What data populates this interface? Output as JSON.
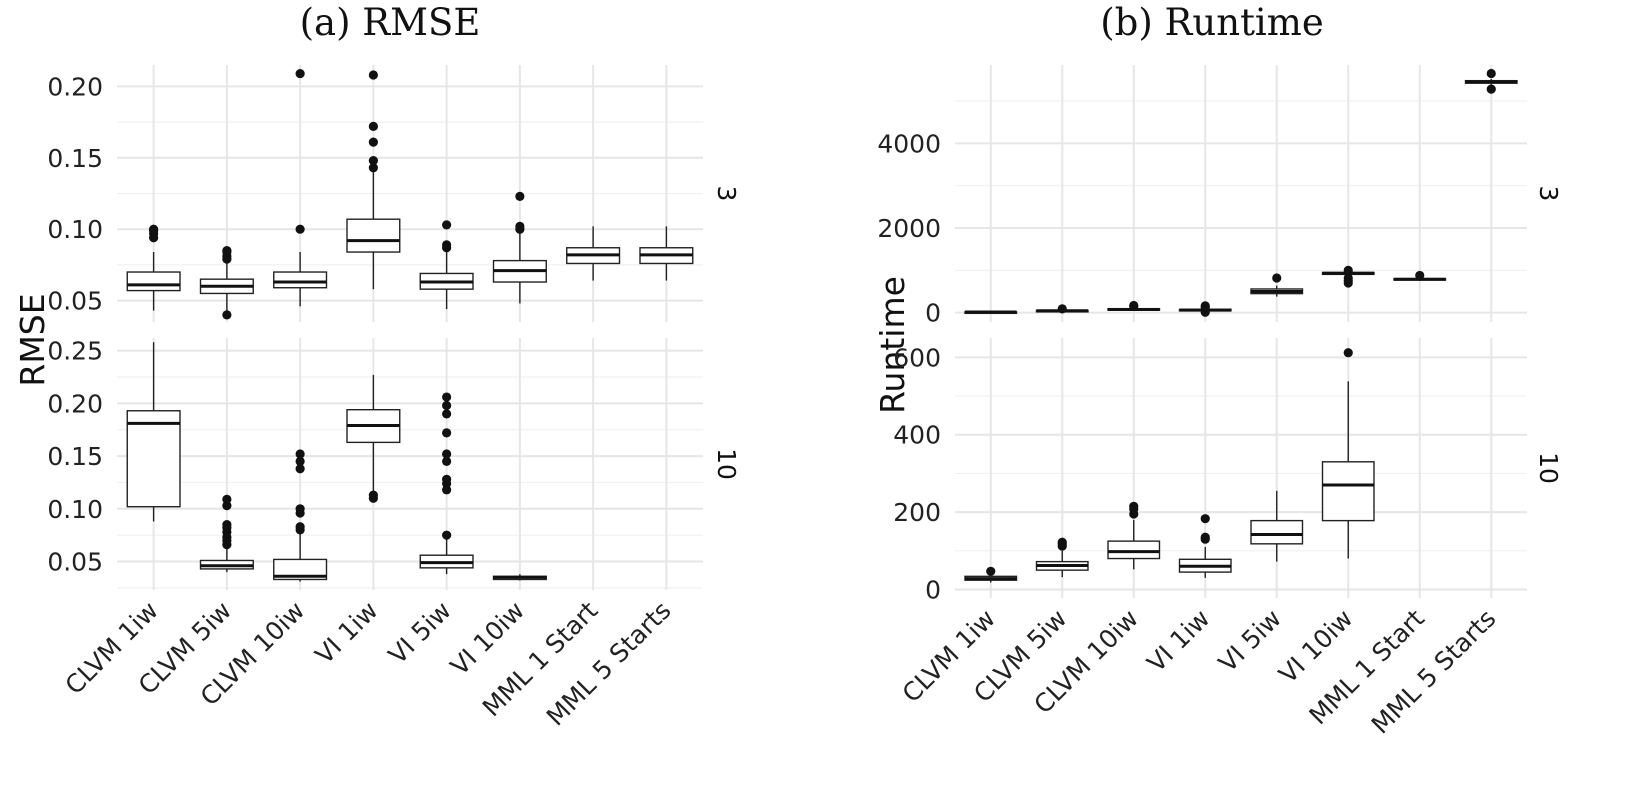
{
  "chart_data": [
    {
      "type": "boxplot",
      "title": "(a) RMSE",
      "ylabel": "RMSE",
      "xlabel": "",
      "categories": [
        "CLVM 1iw",
        "CLVM 5iw",
        "CLVM 10iw",
        "VI 1iw",
        "VI 5iw",
        "VI 10iw",
        "MML 1 Start",
        "MML 5 Starts"
      ],
      "grid": true,
      "facets": [
        {
          "strip": "3",
          "ylim": [
            0.035,
            0.215
          ],
          "yticks": [
            0.05,
            0.1,
            0.15,
            0.2
          ],
          "ytick_labels": [
            "0.05",
            "0.10",
            "0.15",
            "0.20"
          ],
          "boxes": [
            {
              "min": 0.043,
              "q1": 0.057,
              "median": 0.061,
              "q3": 0.07,
              "max": 0.084,
              "outliers": [
                0.094,
                0.097,
                0.099,
                0.1
              ]
            },
            {
              "min": 0.04,
              "q1": 0.055,
              "median": 0.06,
              "q3": 0.065,
              "max": 0.076,
              "outliers": [
                0.04,
                0.079,
                0.081,
                0.084,
                0.085
              ]
            },
            {
              "min": 0.046,
              "q1": 0.059,
              "median": 0.063,
              "q3": 0.07,
              "max": 0.084,
              "outliers": [
                0.1,
                0.209
              ]
            },
            {
              "min": 0.058,
              "q1": 0.084,
              "median": 0.092,
              "q3": 0.107,
              "max": 0.14,
              "outliers": [
                0.143,
                0.148,
                0.161,
                0.172,
                0.208
              ]
            },
            {
              "min": 0.044,
              "q1": 0.058,
              "median": 0.063,
              "q3": 0.069,
              "max": 0.086,
              "outliers": [
                0.087,
                0.089,
                0.103
              ]
            },
            {
              "min": 0.048,
              "q1": 0.063,
              "median": 0.071,
              "q3": 0.078,
              "max": 0.099,
              "outliers": [
                0.1,
                0.102,
                0.123
              ]
            },
            {
              "min": 0.064,
              "q1": 0.076,
              "median": 0.082,
              "q3": 0.087,
              "max": 0.102,
              "outliers": []
            },
            {
              "min": 0.064,
              "q1": 0.076,
              "median": 0.082,
              "q3": 0.087,
              "max": 0.102,
              "outliers": []
            }
          ]
        },
        {
          "strip": "10",
          "ylim": [
            0.023,
            0.262
          ],
          "yticks": [
            0.05,
            0.1,
            0.15,
            0.2,
            0.25
          ],
          "ytick_labels": [
            "0.05",
            "0.10",
            "0.15",
            "0.20",
            "0.25"
          ],
          "boxes": [
            {
              "min": 0.088,
              "q1": 0.102,
              "median": 0.181,
              "q3": 0.193,
              "max": 0.258,
              "outliers": []
            },
            {
              "min": 0.04,
              "q1": 0.043,
              "median": 0.046,
              "q3": 0.051,
              "max": 0.063,
              "outliers": [
                0.066,
                0.07,
                0.073,
                0.078,
                0.082,
                0.085,
                0.103,
                0.109
              ]
            },
            {
              "min": 0.031,
              "q1": 0.033,
              "median": 0.036,
              "q3": 0.052,
              "max": 0.077,
              "outliers": [
                0.08,
                0.083,
                0.096,
                0.1,
                0.138,
                0.145,
                0.152
              ]
            },
            {
              "min": 0.113,
              "q1": 0.163,
              "median": 0.179,
              "q3": 0.194,
              "max": 0.227,
              "outliers": [
                0.11,
                0.113
              ]
            },
            {
              "min": 0.038,
              "q1": 0.044,
              "median": 0.049,
              "q3": 0.056,
              "max": 0.072,
              "outliers": [
                0.075,
                0.118,
                0.124,
                0.128,
                0.145,
                0.152,
                0.172,
                0.19,
                0.198,
                0.206
              ]
            },
            {
              "min": 0.032,
              "q1": 0.033,
              "median": 0.035,
              "q3": 0.036,
              "max": 0.038,
              "outliers": []
            },
            null,
            null
          ]
        }
      ]
    },
    {
      "type": "boxplot",
      "title": "(b) Runtime",
      "ylabel": "Runtime",
      "xlabel": "",
      "categories": [
        "CLVM 1iw",
        "CLVM 5iw",
        "CLVM 10iw",
        "VI 1iw",
        "VI 5iw",
        "VI 10iw",
        "MML 1 Start",
        "MML 5 Starts"
      ],
      "grid": true,
      "facets": [
        {
          "strip": "3",
          "ylim": [
            -220,
            5850
          ],
          "yticks": [
            0,
            2000,
            4000
          ],
          "ytick_labels": [
            "0",
            "2000",
            "4000"
          ],
          "boxes": [
            {
              "min": 5,
              "q1": 10,
              "median": 15,
              "q3": 20,
              "max": 30,
              "outliers": []
            },
            {
              "min": 20,
              "q1": 35,
              "median": 45,
              "q3": 55,
              "max": 75,
              "outliers": [
                90
              ]
            },
            {
              "min": 40,
              "q1": 60,
              "median": 75,
              "q3": 95,
              "max": 130,
              "outliers": [
                150,
                170
              ]
            },
            {
              "min": 20,
              "q1": 45,
              "median": 60,
              "q3": 80,
              "max": 110,
              "outliers": [
                10,
                130,
                160
              ]
            },
            {
              "min": 380,
              "q1": 450,
              "median": 500,
              "q3": 560,
              "max": 640,
              "outliers": [
                820
              ]
            },
            {
              "min": 880,
              "q1": 905,
              "median": 930,
              "q3": 950,
              "max": 980,
              "outliers": [
                700,
                760,
                820,
                1000
              ]
            },
            {
              "min": 750,
              "q1": 770,
              "median": 790,
              "q3": 805,
              "max": 830,
              "outliers": [
                880
              ]
            },
            {
              "min": 5380,
              "q1": 5420,
              "median": 5450,
              "q3": 5480,
              "max": 5520,
              "outliers": [
                5280,
                5650
              ]
            }
          ]
        },
        {
          "strip": "10",
          "ylim": [
            -22,
            650
          ],
          "yticks": [
            0,
            200,
            400,
            600
          ],
          "ytick_labels": [
            "0",
            "200",
            "400",
            "600"
          ],
          "boxes": [
            {
              "min": 18,
              "q1": 24,
              "median": 28,
              "q3": 34,
              "max": 40,
              "outliers": [
                47
              ]
            },
            {
              "min": 32,
              "q1": 50,
              "median": 62,
              "q3": 72,
              "max": 100,
              "outliers": [
                112,
                118,
                122
              ]
            },
            {
              "min": 52,
              "q1": 80,
              "median": 98,
              "q3": 125,
              "max": 180,
              "outliers": [
                195,
                208,
                215
              ]
            },
            {
              "min": 30,
              "q1": 45,
              "median": 60,
              "q3": 78,
              "max": 110,
              "outliers": [
                130,
                135,
                183
              ]
            },
            {
              "min": 72,
              "q1": 118,
              "median": 142,
              "q3": 178,
              "max": 255,
              "outliers": []
            },
            {
              "min": 80,
              "q1": 178,
              "median": 270,
              "q3": 330,
              "max": 538,
              "outliers": [
                612
              ]
            },
            null,
            null
          ]
        }
      ]
    }
  ]
}
